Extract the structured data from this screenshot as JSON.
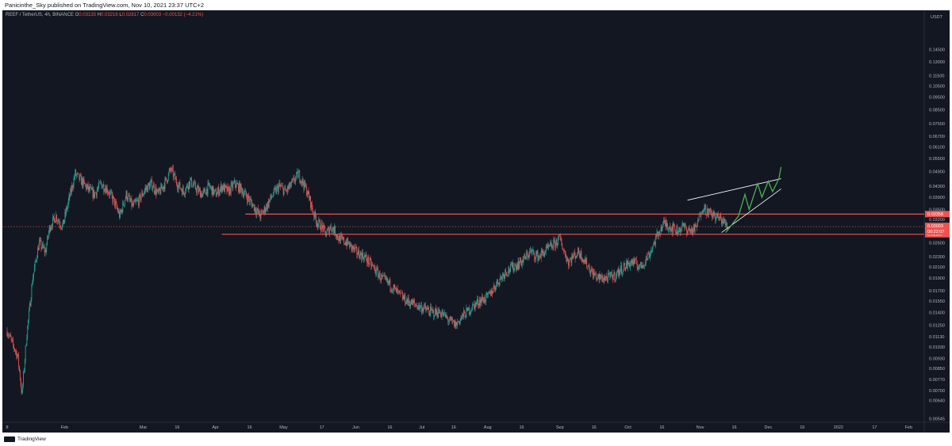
{
  "header": {
    "publisher": "Panicinthe_Sky published on TradingView.com, Nov 10, 2021 23:37 UTC+2"
  },
  "legend": {
    "symbol": "REEF / TetherUS, 4h, BINANCE",
    "o_label": "O",
    "o": "0.03135",
    "h_label": "H",
    "h": "0.03216",
    "l_label": "L",
    "l": "0.02817",
    "c_label": "C",
    "c": "0.03003",
    "change": "−0.00132 (−4.21%)"
  },
  "footer": {
    "brand": "TradingView"
  },
  "chart_data": {
    "type": "candlestick",
    "symbol": "REEF / TetherUS, 4h, BINANCE",
    "currency_label": "USDT",
    "y_scale": "log",
    "y_range": [
      0.0055,
      0.2
    ],
    "y_ticks": [
      "0.00545",
      "0.00640",
      "0.00700",
      "0.00770",
      "0.00850",
      "0.00930",
      "0.01030",
      "0.01130",
      "0.01250",
      "0.01400",
      "0.01550",
      "0.01700",
      "0.01900",
      "0.02100",
      "0.02300",
      "0.02600",
      "0.03200",
      "0.03500",
      "0.03900",
      "0.04300",
      "0.04900",
      "0.05500",
      "0.06100",
      "0.06700",
      "0.07500",
      "0.08500",
      "0.09500",
      "0.10500",
      "0.11500",
      "0.13000",
      "0.14500"
    ],
    "x_ticks": [
      {
        "label": "8",
        "t": 0.0
      },
      {
        "label": "Feb",
        "t": 0.135
      },
      {
        "label": "Mar",
        "t": 0.32
      },
      {
        "label": "16",
        "t": 0.4
      },
      {
        "label": "Apr",
        "t": 0.49
      },
      {
        "label": "16",
        "t": 0.57
      },
      {
        "label": "May",
        "t": 0.65
      },
      {
        "label": "17",
        "t": 0.74
      },
      {
        "label": "Jun",
        "t": 0.82
      },
      {
        "label": "16",
        "t": 0.9
      },
      {
        "label": "Jul",
        "t": 0.975
      },
      {
        "label": "16",
        "t": 1.05
      },
      {
        "label": "Aug",
        "t": 1.13
      },
      {
        "label": "16",
        "t": 1.21
      },
      {
        "label": "Sep",
        "t": 1.3
      },
      {
        "label": "16",
        "t": 1.38
      },
      {
        "label": "Oct",
        "t": 1.46
      },
      {
        "label": "16",
        "t": 1.54
      },
      {
        "label": "Nov",
        "t": 1.63
      },
      {
        "label": "16",
        "t": 1.71
      },
      {
        "label": "Dec",
        "t": 1.79
      },
      {
        "label": "16",
        "t": 1.87
      },
      {
        "label": "2022",
        "t": 1.955
      },
      {
        "label": "17",
        "t": 2.04
      },
      {
        "label": "Feb",
        "t": 2.12
      }
    ],
    "price_path": [
      [
        0.0,
        0.0119
      ],
      [
        0.01,
        0.0108
      ],
      [
        0.025,
        0.0095
      ],
      [
        0.035,
        0.0067
      ],
      [
        0.045,
        0.011
      ],
      [
        0.06,
        0.019
      ],
      [
        0.075,
        0.026
      ],
      [
        0.09,
        0.024
      ],
      [
        0.1,
        0.03
      ],
      [
        0.115,
        0.033
      ],
      [
        0.13,
        0.03
      ],
      [
        0.145,
        0.038
      ],
      [
        0.16,
        0.048
      ],
      [
        0.175,
        0.045
      ],
      [
        0.19,
        0.042
      ],
      [
        0.205,
        0.04
      ],
      [
        0.22,
        0.044
      ],
      [
        0.235,
        0.042
      ],
      [
        0.25,
        0.038
      ],
      [
        0.265,
        0.033
      ],
      [
        0.28,
        0.04
      ],
      [
        0.295,
        0.036
      ],
      [
        0.31,
        0.038
      ],
      [
        0.325,
        0.042
      ],
      [
        0.34,
        0.044
      ],
      [
        0.355,
        0.04
      ],
      [
        0.37,
        0.044
      ],
      [
        0.385,
        0.05
      ],
      [
        0.4,
        0.044
      ],
      [
        0.415,
        0.041
      ],
      [
        0.43,
        0.045
      ],
      [
        0.445,
        0.042
      ],
      [
        0.46,
        0.04
      ],
      [
        0.475,
        0.043
      ],
      [
        0.49,
        0.04
      ],
      [
        0.505,
        0.043
      ],
      [
        0.52,
        0.041
      ],
      [
        0.535,
        0.044
      ],
      [
        0.55,
        0.042
      ],
      [
        0.565,
        0.039
      ],
      [
        0.58,
        0.036
      ],
      [
        0.595,
        0.033
      ],
      [
        0.61,
        0.036
      ],
      [
        0.625,
        0.04
      ],
      [
        0.64,
        0.043
      ],
      [
        0.655,
        0.041
      ],
      [
        0.67,
        0.044
      ],
      [
        0.685,
        0.048
      ],
      [
        0.7,
        0.043
      ],
      [
        0.71,
        0.039
      ],
      [
        0.72,
        0.034
      ],
      [
        0.73,
        0.031
      ],
      [
        0.74,
        0.03
      ],
      [
        0.75,
        0.028
      ],
      [
        0.76,
        0.03
      ],
      [
        0.77,
        0.029
      ],
      [
        0.78,
        0.027
      ],
      [
        0.8,
        0.026
      ],
      [
        0.82,
        0.024
      ],
      [
        0.84,
        0.023
      ],
      [
        0.86,
        0.021
      ],
      [
        0.88,
        0.019
      ],
      [
        0.9,
        0.018
      ],
      [
        0.92,
        0.0165
      ],
      [
        0.94,
        0.0155
      ],
      [
        0.96,
        0.015
      ],
      [
        0.98,
        0.0145
      ],
      [
        1.0,
        0.014
      ],
      [
        1.02,
        0.014
      ],
      [
        1.04,
        0.013
      ],
      [
        1.055,
        0.0125
      ],
      [
        1.07,
        0.0135
      ],
      [
        1.09,
        0.0145
      ],
      [
        1.11,
        0.0155
      ],
      [
        1.13,
        0.016
      ],
      [
        1.15,
        0.018
      ],
      [
        1.17,
        0.02
      ],
      [
        1.19,
        0.021
      ],
      [
        1.21,
        0.022
      ],
      [
        1.23,
        0.024
      ],
      [
        1.25,
        0.023
      ],
      [
        1.27,
        0.0245
      ],
      [
        1.29,
        0.026
      ],
      [
        1.3,
        0.027
      ],
      [
        1.31,
        0.024
      ],
      [
        1.32,
        0.022
      ],
      [
        1.33,
        0.023
      ],
      [
        1.345,
        0.024
      ],
      [
        1.36,
        0.022
      ],
      [
        1.375,
        0.02
      ],
      [
        1.39,
        0.019
      ],
      [
        1.41,
        0.019
      ],
      [
        1.43,
        0.0195
      ],
      [
        1.45,
        0.021
      ],
      [
        1.47,
        0.022
      ],
      [
        1.49,
        0.021
      ],
      [
        1.51,
        0.0235
      ],
      [
        1.53,
        0.028
      ],
      [
        1.545,
        0.031
      ],
      [
        1.56,
        0.03
      ],
      [
        1.575,
        0.029
      ],
      [
        1.59,
        0.03
      ],
      [
        1.605,
        0.029
      ],
      [
        1.62,
        0.0295
      ],
      [
        1.635,
        0.036
      ],
      [
        1.65,
        0.034
      ],
      [
        1.665,
        0.033
      ],
      [
        1.68,
        0.032
      ],
      [
        1.695,
        0.03
      ]
    ],
    "horizontal_levels": [
      {
        "value": 0.03358,
        "label": "0.03358",
        "color": "#ef5350"
      },
      {
        "value": 0.02807,
        "label": "0.02807",
        "color": "#ef5350"
      }
    ],
    "current_price": {
      "value": "0.03003",
      "countdown": "00:22:07",
      "color": "#ef5350"
    },
    "wedge_upper": [
      [
        1.6,
        0.038
      ],
      [
        1.82,
        0.046
      ]
    ],
    "wedge_lower": [
      [
        1.68,
        0.0285
      ],
      [
        1.82,
        0.042
      ]
    ],
    "projection_path": [
      [
        1.69,
        0.0285
      ],
      [
        1.72,
        0.033
      ],
      [
        1.735,
        0.04
      ],
      [
        1.745,
        0.035
      ],
      [
        1.765,
        0.044
      ],
      [
        1.775,
        0.039
      ],
      [
        1.79,
        0.045
      ],
      [
        1.8,
        0.041
      ],
      [
        1.815,
        0.046
      ],
      [
        1.82,
        0.051
      ]
    ],
    "projection_color": "#4caf50",
    "up_color": "#26a69a",
    "down_color": "#ef5350",
    "grid": false
  }
}
